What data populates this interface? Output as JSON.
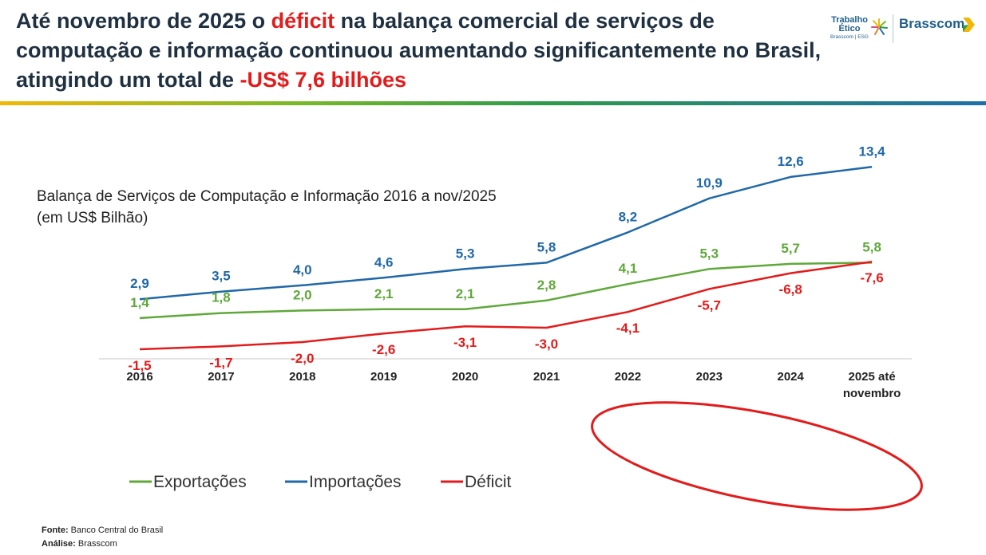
{
  "header": {
    "title_part1": "Até novembro de 2025 o ",
    "title_highlight1": "déficit",
    "title_part2": " na balança comercial de serviços de computação e informação continuou aumentando significantemente no Brasil, atingindo um total de ",
    "title_highlight2": "-US$ 7,6 bilhões",
    "colors": {
      "title": "#1f3041",
      "highlight": "#e31b1b"
    }
  },
  "logos": {
    "trabalho_etico": {
      "line1": "Trabalho",
      "line2": "Ético",
      "line3": "Brasscom | ESG"
    },
    "brasscom": {
      "name": "Brasscom",
      "icon": "chevron-icon"
    }
  },
  "chart_data": {
    "type": "line",
    "title": "Balança de Serviços de Computação e Informação 2016 a nov/2025",
    "subtitle": "(em US$ Bilhão)",
    "categories": [
      "2016",
      "2017",
      "2018",
      "2019",
      "2020",
      "2021",
      "2022",
      "2023",
      "2024",
      "2025 até novembro"
    ],
    "series": [
      {
        "name": "Exportações",
        "color": "#5fa83a",
        "values": [
          1.4,
          1.8,
          2.0,
          2.1,
          2.1,
          2.8,
          4.1,
          5.3,
          5.7,
          5.8
        ],
        "labels": [
          "1,4",
          "1,8",
          "2,0",
          "2,1",
          "2,1",
          "2,8",
          "4,1",
          "5,3",
          "5,7",
          "5,8"
        ]
      },
      {
        "name": "Importações",
        "color": "#2068a8",
        "values": [
          2.9,
          3.5,
          4.0,
          4.6,
          5.3,
          5.8,
          8.2,
          10.9,
          12.6,
          13.4
        ],
        "labels": [
          "2,9",
          "3,5",
          "4,0",
          "4,6",
          "5,3",
          "5,8",
          "8,2",
          "10,9",
          "12,6",
          "13,4"
        ]
      },
      {
        "name": "Déficit",
        "color": "#e31b1b",
        "values": [
          -1.5,
          -1.7,
          -2.0,
          -2.6,
          -3.1,
          -3.0,
          -4.1,
          -5.7,
          -6.8,
          -7.6
        ],
        "labels": [
          "-1,5",
          "-1,7",
          "-2,0",
          "-2,6",
          "-3,1",
          "-3,0",
          "-4,1",
          "-5,7",
          "-6,8",
          "-7,6"
        ]
      }
    ],
    "legend_position": "bottom-left",
    "grid": false,
    "annotation": "red ellipse highlighting 2022 to 2025 deficit values"
  },
  "footer": {
    "source_label": "Fonte:",
    "source_value": " Banco Central do Brasil",
    "analysis_label": "Análise:",
    "analysis_value": " Brasscom"
  }
}
